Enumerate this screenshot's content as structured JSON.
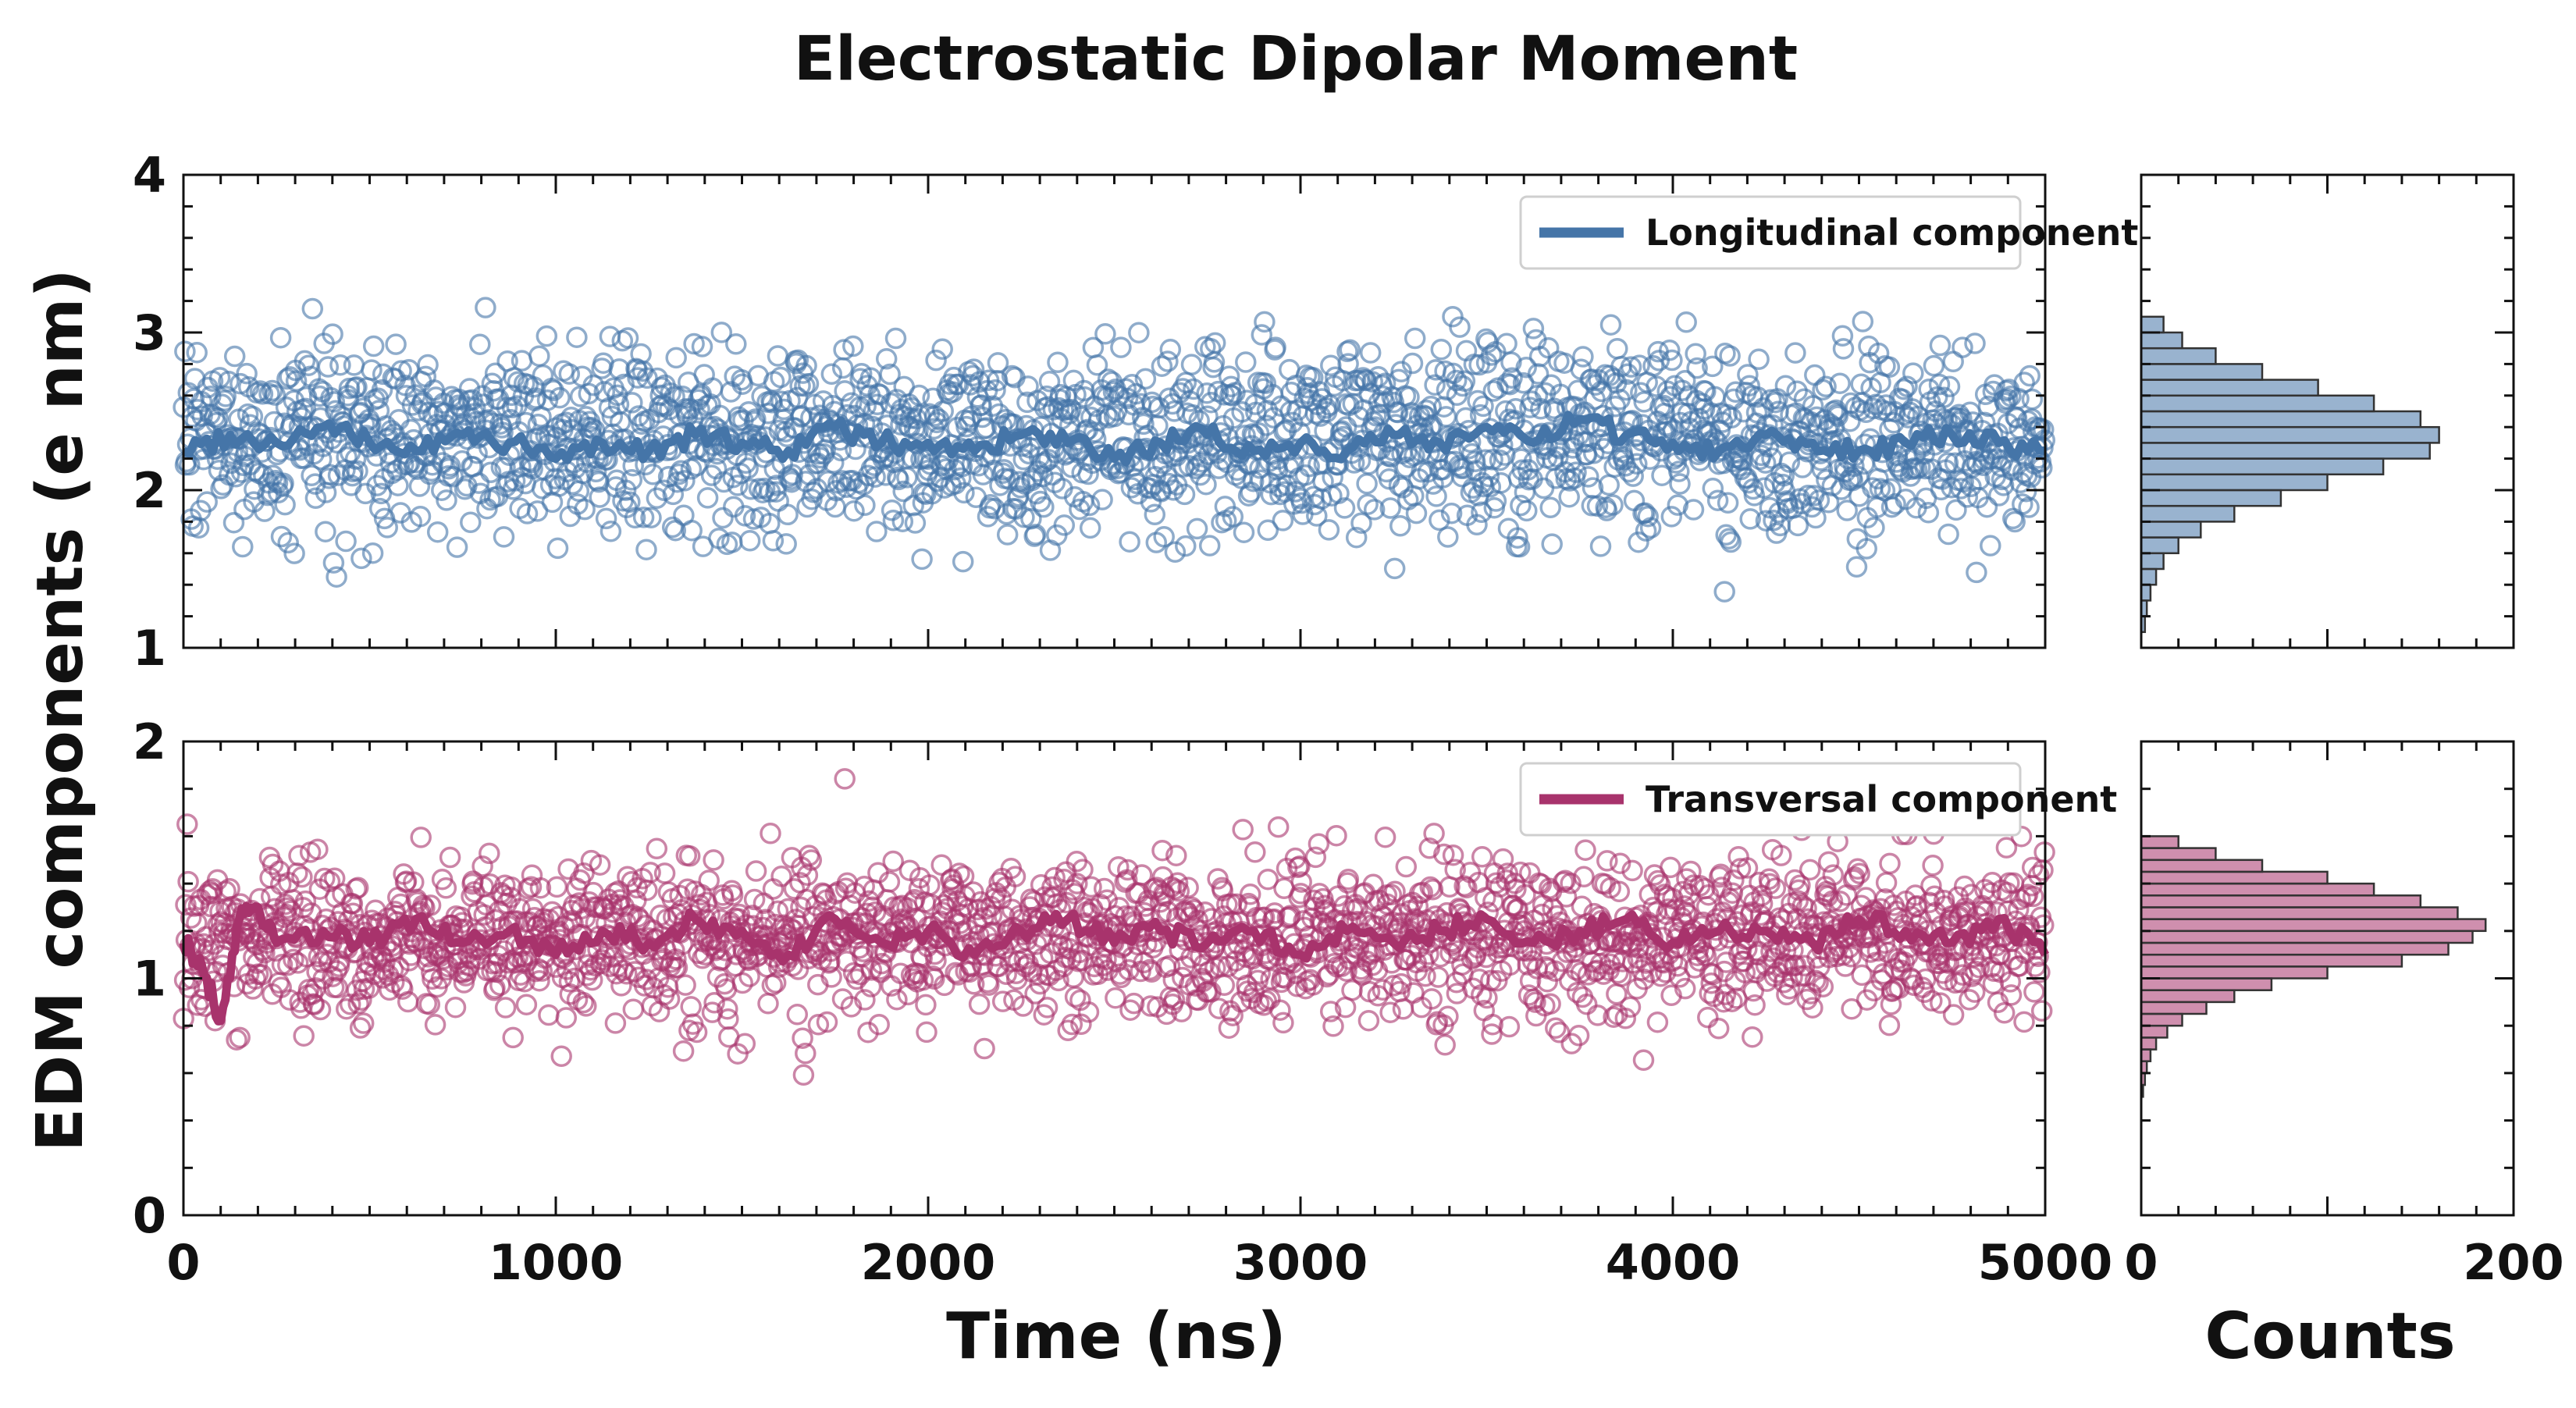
{
  "chart_data": {
    "type": "scatter",
    "title": "Electrostatic Dipolar Moment",
    "xlabel": "Time (ns)",
    "ylabel": "EDM components (e nm)",
    "hist_xlabel": "Counts",
    "xlim": [
      0,
      5000
    ],
    "xticks": [
      "0",
      "1000",
      "2000",
      "3000",
      "4000",
      "5000"
    ],
    "hist_xlim": [
      0,
      200
    ],
    "hist_xticks": [
      "0",
      "200"
    ],
    "grid": false,
    "legend_position": "top-right",
    "panels": [
      {
        "name": "Longitudinal component",
        "color": "#4575a8",
        "ylim": [
          1,
          4
        ],
        "yticks": [
          "1",
          "2",
          "3",
          "4"
        ],
        "scatter_summary": {
          "n_points": 2000,
          "mean": 2.32,
          "std": 0.3,
          "x_range": [
            0,
            5000
          ]
        },
        "running_mean": {
          "x": [
            0,
            125,
            250,
            375,
            500,
            625,
            750,
            875,
            1000,
            1125,
            1250,
            1375,
            1500,
            1625,
            1750,
            1875,
            2000,
            2125,
            2250,
            2375,
            2500,
            2625,
            2750,
            2875,
            3000,
            3125,
            3250,
            3375,
            3500,
            3625,
            3750,
            3875,
            4000,
            4125,
            4250,
            4375,
            4500,
            4625,
            4750,
            4875,
            5000
          ],
          "y": [
            2.25,
            2.35,
            2.3,
            2.4,
            2.3,
            2.25,
            2.35,
            2.3,
            2.2,
            2.3,
            2.25,
            2.35,
            2.3,
            2.25,
            2.4,
            2.3,
            2.3,
            2.25,
            2.35,
            2.3,
            2.2,
            2.3,
            2.35,
            2.25,
            2.3,
            2.25,
            2.35,
            2.3,
            2.4,
            2.3,
            2.45,
            2.35,
            2.3,
            2.25,
            2.35,
            2.3,
            2.25,
            2.3,
            2.35,
            2.3,
            2.25
          ]
        },
        "histogram": {
          "bin_edges": [
            1.1,
            1.2,
            1.3,
            1.4,
            1.5,
            1.6,
            1.7,
            1.8,
            1.9,
            2.0,
            2.1,
            2.2,
            2.3,
            2.4,
            2.5,
            2.6,
            2.7,
            2.8,
            2.9,
            3.0,
            3.1
          ],
          "counts": [
            2,
            3,
            5,
            8,
            12,
            20,
            32,
            50,
            75,
            100,
            130,
            155,
            160,
            150,
            125,
            95,
            65,
            40,
            22,
            12
          ]
        }
      },
      {
        "name": "Transversal component",
        "color": "#a8336c",
        "ylim": [
          0,
          2
        ],
        "yticks": [
          "0",
          "1",
          "2"
        ],
        "scatter_summary": {
          "n_points": 2000,
          "mean": 1.17,
          "std": 0.17,
          "x_range": [
            0,
            5000
          ]
        },
        "running_mean": {
          "x": [
            0,
            50,
            100,
            150,
            200,
            250,
            375,
            500,
            625,
            750,
            875,
            1000,
            1125,
            1250,
            1375,
            1500,
            1625,
            1750,
            1875,
            2000,
            2125,
            2250,
            2375,
            2500,
            2625,
            2750,
            2875,
            3000,
            3125,
            3250,
            3375,
            3500,
            3625,
            3750,
            3875,
            4000,
            4125,
            4250,
            4375,
            4500,
            4625,
            4750,
            4875,
            5000
          ],
          "y": [
            1.15,
            1.05,
            0.82,
            1.25,
            1.3,
            1.15,
            1.2,
            1.15,
            1.25,
            1.15,
            1.2,
            1.1,
            1.2,
            1.15,
            1.25,
            1.2,
            1.1,
            1.25,
            1.15,
            1.2,
            1.1,
            1.2,
            1.25,
            1.15,
            1.2,
            1.15,
            1.2,
            1.1,
            1.2,
            1.15,
            1.2,
            1.25,
            1.15,
            1.2,
            1.25,
            1.15,
            1.2,
            1.2,
            1.15,
            1.25,
            1.2,
            1.15,
            1.25,
            1.1
          ]
        },
        "histogram": {
          "bin_edges": [
            0.5,
            0.55,
            0.6,
            0.65,
            0.7,
            0.75,
            0.8,
            0.85,
            0.9,
            0.95,
            1.0,
            1.05,
            1.1,
            1.15,
            1.2,
            1.25,
            1.3,
            1.35,
            1.4,
            1.45,
            1.5,
            1.55,
            1.6
          ],
          "counts": [
            1,
            2,
            3,
            5,
            8,
            14,
            22,
            35,
            50,
            70,
            100,
            140,
            165,
            178,
            185,
            170,
            150,
            125,
            100,
            65,
            40,
            20
          ]
        }
      }
    ]
  }
}
